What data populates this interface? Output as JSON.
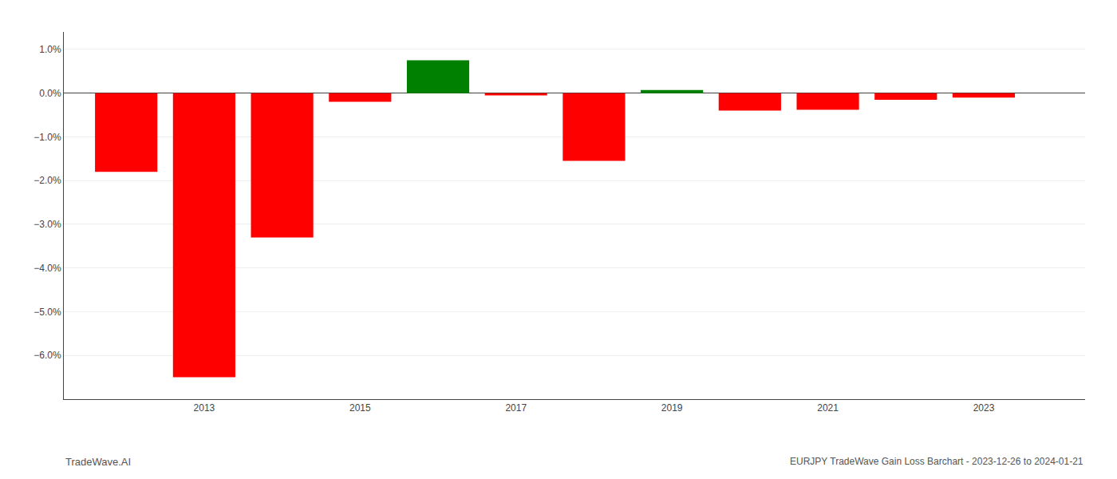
{
  "chart_data": {
    "type": "bar",
    "x": [
      2012,
      2013,
      2014,
      2015,
      2016,
      2017,
      2018,
      2019,
      2020,
      2021,
      2022,
      2023
    ],
    "values": [
      -0.018,
      -0.065,
      -0.033,
      -0.002,
      0.0075,
      -0.0005,
      -0.0155,
      0.0007,
      -0.004,
      -0.0038,
      -0.0015,
      -0.001
    ],
    "colors": [
      "#ff0000",
      "#ff0000",
      "#ff0000",
      "#ff0000",
      "#008000",
      "#ff0000",
      "#ff0000",
      "#008000",
      "#ff0000",
      "#ff0000",
      "#ff0000",
      "#ff0000"
    ],
    "xlim": [
      2011.2,
      2024.3
    ],
    "xticks": [
      2013,
      2015,
      2017,
      2019,
      2021,
      2023
    ],
    "ylim": [
      -0.07,
      0.014
    ],
    "yticks": [
      {
        "value": 0.01,
        "label": "1.0%"
      },
      {
        "value": 0.0,
        "label": "0.0%"
      },
      {
        "value": -0.01,
        "label": "−1.0%"
      },
      {
        "value": -0.02,
        "label": "−2.0%"
      },
      {
        "value": -0.03,
        "label": "−3.0%"
      },
      {
        "value": -0.04,
        "label": "−4.0%"
      },
      {
        "value": -0.05,
        "label": "−5.0%"
      },
      {
        "value": -0.06,
        "label": "−6.0%"
      }
    ],
    "grid": "y",
    "annotations": [
      "TradeWave.AI",
      "EURJPY TradeWave Gain Loss Barchart - 2023-12-26 to 2024-01-21"
    ]
  }
}
